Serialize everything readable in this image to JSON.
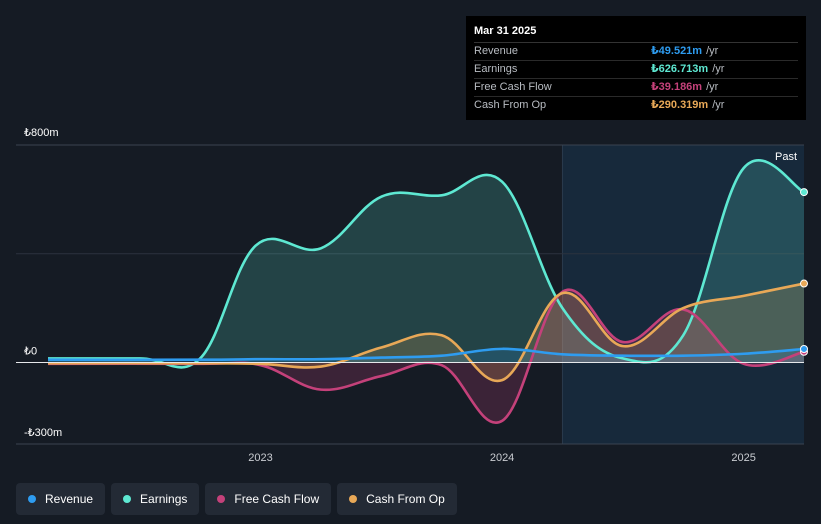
{
  "tooltip": {
    "date": "Mar 31 2025",
    "rows": [
      {
        "label": "Revenue",
        "value": "₺49.521m",
        "unit": "/yr",
        "color": "#2e9cf0"
      },
      {
        "label": "Earnings",
        "value": "₺626.713m",
        "unit": "/yr",
        "color": "#5ee8d2"
      },
      {
        "label": "Free Cash Flow",
        "value": "₺39.186m",
        "unit": "/yr",
        "color": "#c4417a"
      },
      {
        "label": "Cash From Op",
        "value": "₺290.319m",
        "unit": "/yr",
        "color": "#e8a857"
      }
    ]
  },
  "chart_data": {
    "type": "area",
    "ylim": [
      -300,
      800
    ],
    "y_tick_labels": [
      {
        "value": 800,
        "label": "₺800m"
      },
      {
        "value": 0,
        "label": "₺0"
      },
      {
        "value": -300,
        "label": "-₺300m"
      }
    ],
    "x_tick_labels": [
      {
        "value": 2023.0,
        "label": "2023"
      },
      {
        "value": 2024.0,
        "label": "2024"
      },
      {
        "value": 2025.0,
        "label": "2025"
      }
    ],
    "xlim": [
      2022.12,
      2025.25
    ],
    "past_label": "Past",
    "past_start": 2024.25,
    "series": [
      {
        "name": "Revenue",
        "color": "#2e9cf0",
        "x": [
          2022.12,
          2022.75,
          2023.0,
          2023.25,
          2023.5,
          2023.75,
          2024.0,
          2024.25,
          2024.5,
          2024.75,
          2025.0,
          2025.25
        ],
        "y": [
          10,
          10,
          12,
          12,
          18,
          25,
          50,
          30,
          25,
          25,
          32,
          49.5
        ]
      },
      {
        "name": "Earnings",
        "color": "#5ee8d2",
        "x": [
          2022.12,
          2022.5,
          2022.75,
          2022.98,
          2023.25,
          2023.5,
          2023.75,
          2024.0,
          2024.25,
          2024.5,
          2024.75,
          2025.0,
          2025.25
        ],
        "y": [
          15,
          15,
          15,
          430,
          420,
          610,
          615,
          665,
          200,
          15,
          100,
          715,
          626.7
        ]
      },
      {
        "name": "Free Cash Flow",
        "color": "#c4417a",
        "x": [
          2022.12,
          2022.75,
          2023.0,
          2023.25,
          2023.5,
          2023.75,
          2024.0,
          2024.25,
          2024.5,
          2024.75,
          2025.0,
          2025.25
        ],
        "y": [
          -5,
          -5,
          -10,
          -100,
          -50,
          -10,
          -215,
          260,
          75,
          195,
          -5,
          39.2
        ]
      },
      {
        "name": "Cash From Op",
        "color": "#e8a857",
        "x": [
          2022.12,
          2022.75,
          2023.0,
          2023.25,
          2023.5,
          2023.75,
          2024.0,
          2024.25,
          2024.5,
          2024.75,
          2025.0,
          2025.25
        ],
        "y": [
          -3,
          -3,
          -5,
          -15,
          55,
          100,
          -65,
          255,
          60,
          200,
          245,
          290.3
        ]
      }
    ]
  },
  "legend": [
    {
      "label": "Revenue",
      "color": "#2e9cf0"
    },
    {
      "label": "Earnings",
      "color": "#5ee8d2"
    },
    {
      "label": "Free Cash Flow",
      "color": "#c4417a"
    },
    {
      "label": "Cash From Op",
      "color": "#e8a857"
    }
  ]
}
